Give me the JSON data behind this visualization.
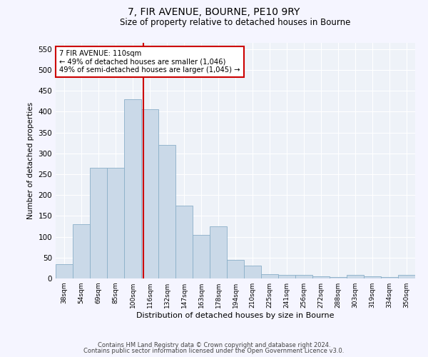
{
  "title": "7, FIR AVENUE, BOURNE, PE10 9RY",
  "subtitle": "Size of property relative to detached houses in Bourne",
  "xlabel": "Distribution of detached houses by size in Bourne",
  "ylabel": "Number of detached properties",
  "bar_color": "#cad9e8",
  "bar_edge_color": "#8aafc8",
  "background_color": "#eef2f8",
  "gridcolor": "#ffffff",
  "vline_color": "#cc0000",
  "annotation_text": "7 FIR AVENUE: 110sqm\n← 49% of detached houses are smaller (1,046)\n49% of semi-detached houses are larger (1,045) →",
  "annotation_box_color": "#ffffff",
  "annotation_box_edge": "#cc0000",
  "footer1": "Contains HM Land Registry data © Crown copyright and database right 2024.",
  "footer2": "Contains public sector information licensed under the Open Government Licence v3.0.",
  "bin_labels": [
    "38sqm",
    "54sqm",
    "69sqm",
    "85sqm",
    "100sqm",
    "116sqm",
    "132sqm",
    "147sqm",
    "163sqm",
    "178sqm",
    "194sqm",
    "210sqm",
    "225sqm",
    "241sqm",
    "256sqm",
    "272sqm",
    "288sqm",
    "303sqm",
    "319sqm",
    "334sqm",
    "350sqm"
  ],
  "bar_heights": [
    35,
    130,
    265,
    265,
    430,
    405,
    320,
    175,
    105,
    125,
    45,
    30,
    10,
    8,
    8,
    5,
    3,
    8,
    5,
    3,
    8
  ],
  "ylim": [
    0,
    565
  ],
  "yticks": [
    0,
    50,
    100,
    150,
    200,
    250,
    300,
    350,
    400,
    450,
    500,
    550
  ],
  "fig_width": 6.0,
  "fig_height": 5.0,
  "dpi": 100
}
